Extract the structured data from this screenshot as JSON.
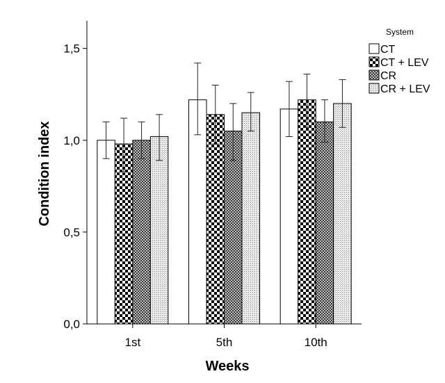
{
  "chart_data": {
    "type": "bar",
    "title": "",
    "xlabel": "Weeks",
    "ylabel": "Condition index",
    "ylim": [
      0,
      1.65
    ],
    "yticks": [
      "0,0",
      "0,5",
      "1,0",
      "1,5"
    ],
    "ytick_values": [
      0,
      0.5,
      1.0,
      1.5
    ],
    "categories": [
      "1st",
      "5th",
      "10th"
    ],
    "legend_title": "System",
    "legend_position": "top-right",
    "series": [
      {
        "name": "CT",
        "pattern": "white",
        "values": [
          1.0,
          1.22,
          1.17
        ],
        "err_low": [
          0.9,
          1.03,
          1.02
        ],
        "err_high": [
          1.1,
          1.42,
          1.32
        ]
      },
      {
        "name": "CT + LEV",
        "pattern": "coarse-check",
        "values": [
          0.98,
          1.14,
          1.22
        ],
        "err_low": [
          0.83,
          0.98,
          1.07
        ],
        "err_high": [
          1.12,
          1.3,
          1.36
        ]
      },
      {
        "name": "CR",
        "pattern": "fine-check",
        "values": [
          1.0,
          1.05,
          1.1
        ],
        "err_low": [
          0.9,
          0.89,
          0.99
        ],
        "err_high": [
          1.1,
          1.2,
          1.22
        ]
      },
      {
        "name": "CR + LEV",
        "pattern": "dots",
        "values": [
          1.02,
          1.15,
          1.2
        ],
        "err_low": [
          0.89,
          1.05,
          1.07
        ],
        "err_high": [
          1.14,
          1.26,
          1.33
        ]
      }
    ]
  }
}
